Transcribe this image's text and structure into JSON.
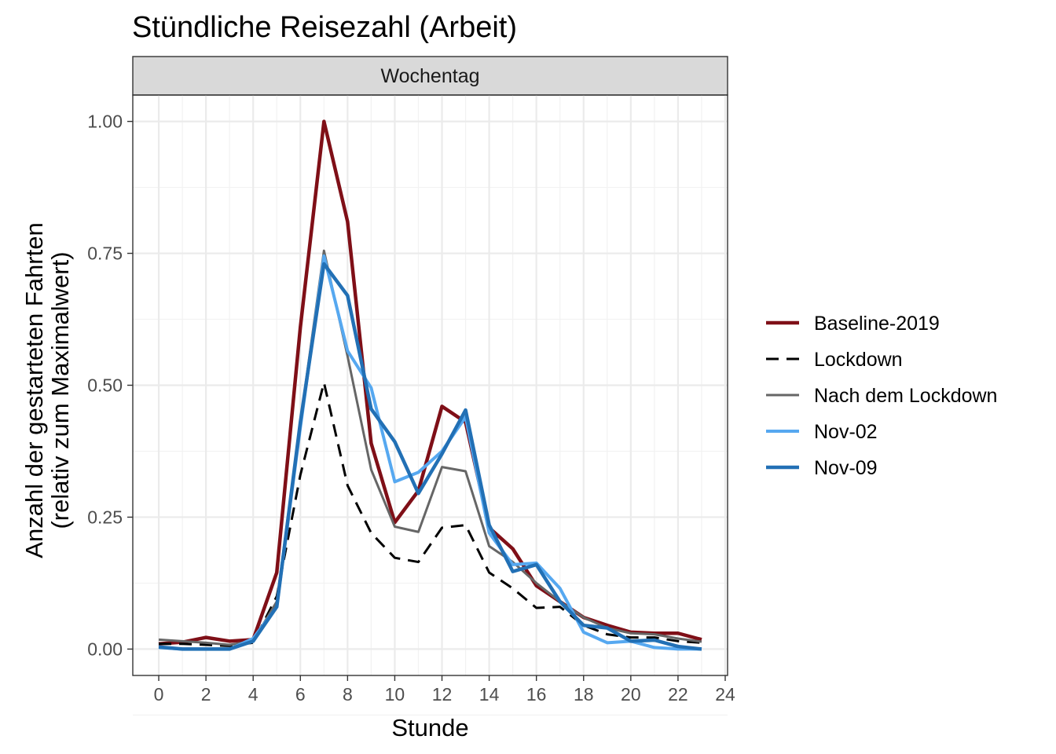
{
  "chart_data": {
    "type": "line",
    "title": "Stündliche Reisezahl (Arbeit)",
    "facet": "Wochentag",
    "xlabel": "Stunde",
    "ylabel_line1": "Anzahl der gestarteten Fahrten",
    "ylabel_line2": "(relativ zum Maximalwert)",
    "xlim": [
      -1.1,
      24.1
    ],
    "ylim": [
      -0.05,
      1.05
    ],
    "x_ticks": [
      "0",
      "2",
      "4",
      "6",
      "8",
      "10",
      "12",
      "14",
      "16",
      "18",
      "20",
      "22",
      "24"
    ],
    "y_ticks": [
      "0.00",
      "0.25",
      "0.50",
      "0.75",
      "1.00"
    ],
    "grid": true,
    "legend_position": "right",
    "x": [
      0,
      1,
      2,
      3,
      4,
      5,
      6,
      7,
      8,
      9,
      10,
      11,
      12,
      13,
      14,
      15,
      16,
      17,
      18,
      19,
      20,
      21,
      22,
      23
    ],
    "series": [
      {
        "name": "Baseline-2019",
        "color": "#7f0f17",
        "dash": "solid",
        "width": 4.5,
        "values": [
          0.01,
          0.013,
          0.022,
          0.015,
          0.018,
          0.145,
          0.61,
          1.0,
          0.81,
          0.39,
          0.24,
          0.3,
          0.46,
          0.43,
          0.23,
          0.19,
          0.12,
          0.09,
          0.06,
          0.045,
          0.032,
          0.03,
          0.03,
          0.018
        ]
      },
      {
        "name": "Lockdown",
        "color": "#000000",
        "dash": "dashed",
        "width": 3,
        "values": [
          0.01,
          0.01,
          0.008,
          0.006,
          0.012,
          0.1,
          0.33,
          0.505,
          0.31,
          0.22,
          0.173,
          0.165,
          0.23,
          0.235,
          0.145,
          0.115,
          0.078,
          0.08,
          0.045,
          0.028,
          0.022,
          0.022,
          0.015,
          0.012
        ]
      },
      {
        "name": "Nach dem Lockdown",
        "color": "#666666",
        "dash": "solid",
        "width": 3,
        "values": [
          0.018,
          0.015,
          0.012,
          0.008,
          0.015,
          0.09,
          0.43,
          0.755,
          0.555,
          0.34,
          0.232,
          0.222,
          0.345,
          0.337,
          0.195,
          0.165,
          0.125,
          0.09,
          0.06,
          0.04,
          0.03,
          0.028,
          0.02,
          0.014
        ]
      },
      {
        "name": "Nov-02",
        "color": "#56a8f0",
        "dash": "solid",
        "width": 4,
        "values": [
          0.003,
          0.0,
          0.0,
          0.0,
          0.02,
          0.08,
          0.42,
          0.745,
          0.565,
          0.495,
          0.317,
          0.335,
          0.375,
          0.44,
          0.22,
          0.16,
          0.163,
          0.115,
          0.032,
          0.012,
          0.015,
          0.003,
          0.0,
          0.0
        ]
      },
      {
        "name": "Nov-09",
        "color": "#2270b5",
        "dash": "solid",
        "width": 4.5,
        "values": [
          0.004,
          0.0,
          0.0,
          0.0,
          0.015,
          0.08,
          0.43,
          0.73,
          0.67,
          0.455,
          0.393,
          0.295,
          0.37,
          0.453,
          0.235,
          0.147,
          0.16,
          0.09,
          0.045,
          0.04,
          0.015,
          0.017,
          0.005,
          0.0
        ]
      }
    ]
  }
}
